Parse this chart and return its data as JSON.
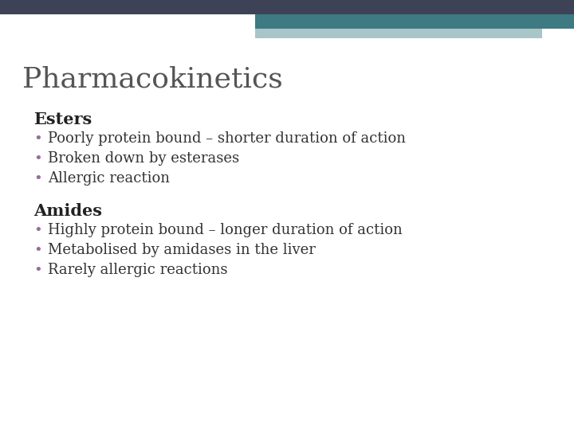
{
  "title": "Pharmacokinetics",
  "title_color": "#555555",
  "title_fontsize": 26,
  "background_color": "#ffffff",
  "bar1_color": "#3d4257",
  "bar2_color": "#3d7a82",
  "bar3_color": "#a8c5c8",
  "section1_heading": "Esters",
  "section1_bullets": [
    "Poorly protein bound – shorter duration of action",
    "Broken down by esterases",
    "Allergic reaction"
  ],
  "section2_heading": "Amides",
  "section2_bullets": [
    "Highly protein bound – longer duration of action",
    "Metabolised by amidases in the liver",
    "Rarely allergic reactions"
  ],
  "heading_fontsize": 15,
  "bullet_fontsize": 13,
  "heading_color": "#222222",
  "bullet_color": "#333333",
  "bullet_dot_color": "#9b6b9b"
}
